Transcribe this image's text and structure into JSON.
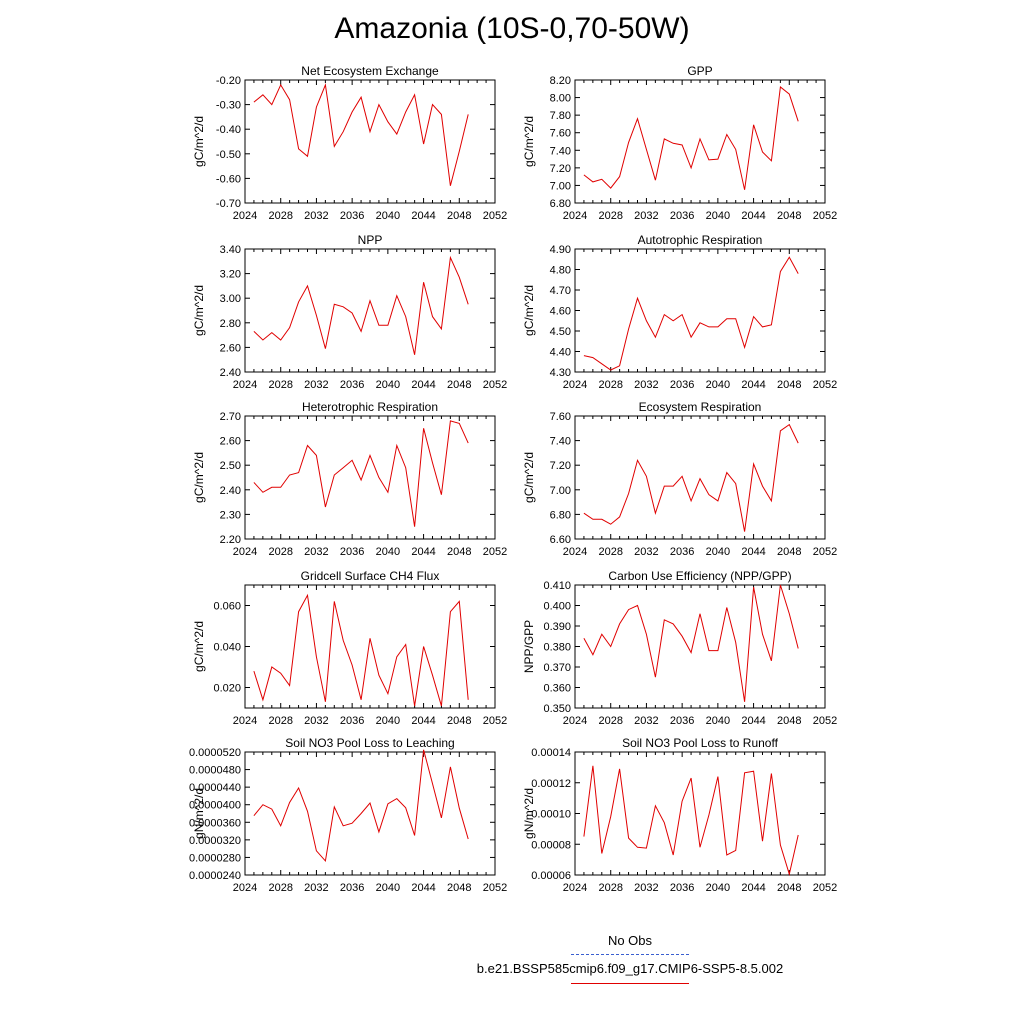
{
  "title": "Amazonia (10S-0,70-50W)",
  "legend": {
    "obs_label": "No Obs",
    "obs_color": "#3a5fd0",
    "run_label": "b.e21.BSSP585cmip6.f09_g17.CMIP6-SSP5-8.5.002",
    "run_color": "#e00000"
  },
  "chart_data": [
    {
      "type": "line",
      "title": "Net Ecosystem Exchange",
      "ylabel": "gC/m^2/d",
      "xlim": [
        2024,
        2052
      ],
      "xticks": [
        "2024",
        "2028",
        "2032",
        "2036",
        "2040",
        "2044",
        "2048",
        "2052"
      ],
      "ylim": [
        -0.7,
        -0.2
      ],
      "yticks": [
        "-0.70",
        "-0.60",
        "-0.50",
        "-0.40",
        "-0.30",
        "-0.20"
      ],
      "yticks_values": [
        -0.7,
        -0.6,
        -0.5,
        -0.4,
        -0.3,
        -0.2
      ],
      "x": [
        2025,
        2026,
        2027,
        2028,
        2029,
        2030,
        2031,
        2032,
        2033,
        2034,
        2035,
        2036,
        2037,
        2038,
        2039,
        2040,
        2041,
        2042,
        2043,
        2044,
        2045,
        2046,
        2047,
        2048,
        2049
      ],
      "series": [
        {
          "color": "#e00000",
          "values": [
            -0.29,
            -0.26,
            -0.3,
            -0.22,
            -0.28,
            -0.48,
            -0.51,
            -0.31,
            -0.22,
            -0.47,
            -0.41,
            -0.33,
            -0.27,
            -0.41,
            -0.3,
            -0.37,
            -0.42,
            -0.33,
            -0.26,
            -0.46,
            -0.3,
            -0.34,
            -0.63,
            -0.49,
            -0.34
          ]
        }
      ]
    },
    {
      "type": "line",
      "title": "GPP",
      "ylabel": "gC/m^2/d",
      "xlim": [
        2024,
        2052
      ],
      "xticks": [
        "2024",
        "2028",
        "2032",
        "2036",
        "2040",
        "2044",
        "2048",
        "2052"
      ],
      "ylim": [
        6.8,
        8.2
      ],
      "yticks": [
        "6.80",
        "7.00",
        "7.20",
        "7.40",
        "7.60",
        "7.80",
        "8.00",
        "8.20"
      ],
      "yticks_values": [
        6.8,
        7.0,
        7.2,
        7.4,
        7.6,
        7.8,
        8.0,
        8.2
      ],
      "x": [
        2025,
        2026,
        2027,
        2028,
        2029,
        2030,
        2031,
        2032,
        2033,
        2034,
        2035,
        2036,
        2037,
        2038,
        2039,
        2040,
        2041,
        2042,
        2043,
        2044,
        2045,
        2046,
        2047,
        2048,
        2049
      ],
      "series": [
        {
          "color": "#e00000",
          "values": [
            7.12,
            7.04,
            7.07,
            6.97,
            7.1,
            7.49,
            7.76,
            7.41,
            7.06,
            7.53,
            7.48,
            7.46,
            7.2,
            7.53,
            7.29,
            7.3,
            7.58,
            7.41,
            6.95,
            7.69,
            7.38,
            7.28,
            8.12,
            8.04,
            7.73
          ]
        }
      ]
    },
    {
      "type": "line",
      "title": "NPP",
      "ylabel": "gC/m^2/d",
      "xlim": [
        2024,
        2052
      ],
      "xticks": [
        "2024",
        "2028",
        "2032",
        "2036",
        "2040",
        "2044",
        "2048",
        "2052"
      ],
      "ylim": [
        2.4,
        3.4
      ],
      "yticks": [
        "2.40",
        "2.60",
        "2.80",
        "3.00",
        "3.20",
        "3.40"
      ],
      "yticks_values": [
        2.4,
        2.6,
        2.8,
        3.0,
        3.2,
        3.4
      ],
      "x": [
        2025,
        2026,
        2027,
        2028,
        2029,
        2030,
        2031,
        2032,
        2033,
        2034,
        2035,
        2036,
        2037,
        2038,
        2039,
        2040,
        2041,
        2042,
        2043,
        2044,
        2045,
        2046,
        2047,
        2048,
        2049
      ],
      "series": [
        {
          "color": "#e00000",
          "values": [
            2.73,
            2.66,
            2.72,
            2.66,
            2.76,
            2.97,
            3.1,
            2.86,
            2.59,
            2.95,
            2.93,
            2.88,
            2.73,
            2.98,
            2.78,
            2.78,
            3.02,
            2.85,
            2.54,
            3.13,
            2.85,
            2.75,
            3.33,
            3.17,
            2.95
          ]
        }
      ]
    },
    {
      "type": "line",
      "title": "Autotrophic Respiration",
      "ylabel": "gC/m^2/d",
      "xlim": [
        2024,
        2052
      ],
      "xticks": [
        "2024",
        "2028",
        "2032",
        "2036",
        "2040",
        "2044",
        "2048",
        "2052"
      ],
      "ylim": [
        4.3,
        4.9
      ],
      "yticks": [
        "4.30",
        "4.40",
        "4.50",
        "4.60",
        "4.70",
        "4.80",
        "4.90"
      ],
      "yticks_values": [
        4.3,
        4.4,
        4.5,
        4.6,
        4.7,
        4.8,
        4.9
      ],
      "x": [
        2025,
        2026,
        2027,
        2028,
        2029,
        2030,
        2031,
        2032,
        2033,
        2034,
        2035,
        2036,
        2037,
        2038,
        2039,
        2040,
        2041,
        2042,
        2043,
        2044,
        2045,
        2046,
        2047,
        2048,
        2049
      ],
      "series": [
        {
          "color": "#e00000",
          "values": [
            4.38,
            4.37,
            4.34,
            4.31,
            4.33,
            4.51,
            4.66,
            4.55,
            4.47,
            4.58,
            4.55,
            4.58,
            4.47,
            4.54,
            4.52,
            4.52,
            4.56,
            4.56,
            4.42,
            4.57,
            4.52,
            4.53,
            4.79,
            4.86,
            4.78
          ]
        }
      ]
    },
    {
      "type": "line",
      "title": "Heterotrophic Respiration",
      "ylabel": "gC/m^2/d",
      "xlim": [
        2024,
        2052
      ],
      "xticks": [
        "2024",
        "2028",
        "2032",
        "2036",
        "2040",
        "2044",
        "2048",
        "2052"
      ],
      "ylim": [
        2.2,
        2.7
      ],
      "yticks": [
        "2.20",
        "2.30",
        "2.40",
        "2.50",
        "2.60",
        "2.70"
      ],
      "yticks_values": [
        2.2,
        2.3,
        2.4,
        2.5,
        2.6,
        2.7
      ],
      "x": [
        2025,
        2026,
        2027,
        2028,
        2029,
        2030,
        2031,
        2032,
        2033,
        2034,
        2035,
        2036,
        2037,
        2038,
        2039,
        2040,
        2041,
        2042,
        2043,
        2044,
        2045,
        2046,
        2047,
        2048,
        2049
      ],
      "series": [
        {
          "color": "#e00000",
          "values": [
            2.43,
            2.39,
            2.41,
            2.41,
            2.46,
            2.47,
            2.58,
            2.54,
            2.33,
            2.46,
            2.49,
            2.52,
            2.44,
            2.54,
            2.45,
            2.39,
            2.58,
            2.49,
            2.25,
            2.65,
            2.51,
            2.38,
            2.68,
            2.67,
            2.59
          ]
        }
      ]
    },
    {
      "type": "line",
      "title": "Ecosystem Respiration",
      "ylabel": "gC/m^2/d",
      "xlim": [
        2024,
        2052
      ],
      "xticks": [
        "2024",
        "2028",
        "2032",
        "2036",
        "2040",
        "2044",
        "2048",
        "2052"
      ],
      "ylim": [
        6.6,
        7.6
      ],
      "yticks": [
        "6.60",
        "6.80",
        "7.00",
        "7.20",
        "7.40",
        "7.60"
      ],
      "yticks_values": [
        6.6,
        6.8,
        7.0,
        7.2,
        7.4,
        7.6
      ],
      "x": [
        2025,
        2026,
        2027,
        2028,
        2029,
        2030,
        2031,
        2032,
        2033,
        2034,
        2035,
        2036,
        2037,
        2038,
        2039,
        2040,
        2041,
        2042,
        2043,
        2044,
        2045,
        2046,
        2047,
        2048,
        2049
      ],
      "series": [
        {
          "color": "#e00000",
          "values": [
            6.81,
            6.76,
            6.76,
            6.72,
            6.78,
            6.97,
            7.24,
            7.11,
            6.81,
            7.03,
            7.03,
            7.11,
            6.91,
            7.09,
            6.96,
            6.91,
            7.14,
            7.05,
            6.66,
            7.21,
            7.03,
            6.91,
            7.48,
            7.53,
            7.38
          ]
        }
      ]
    },
    {
      "type": "line",
      "title": "Gridcell Surface CH4 Flux",
      "ylabel": "gC/m^2/d",
      "xlim": [
        2024,
        2052
      ],
      "xticks": [
        "2024",
        "2028",
        "2032",
        "2036",
        "2040",
        "2044",
        "2048",
        "2052"
      ],
      "ylim": [
        0.01,
        0.07
      ],
      "yticks": [
        "0.020",
        "0.040",
        "0.060"
      ],
      "yticks_values": [
        0.02,
        0.04,
        0.06
      ],
      "x": [
        2025,
        2026,
        2027,
        2028,
        2029,
        2030,
        2031,
        2032,
        2033,
        2034,
        2035,
        2036,
        2037,
        2038,
        2039,
        2040,
        2041,
        2042,
        2043,
        2044,
        2045,
        2046,
        2047,
        2048,
        2049
      ],
      "series": [
        {
          "color": "#e00000",
          "values": [
            0.028,
            0.014,
            0.03,
            0.027,
            0.021,
            0.057,
            0.065,
            0.035,
            0.013,
            0.062,
            0.043,
            0.031,
            0.014,
            0.044,
            0.026,
            0.017,
            0.035,
            0.041,
            0.011,
            0.04,
            0.026,
            0.011,
            0.057,
            0.062,
            0.014
          ]
        }
      ]
    },
    {
      "type": "line",
      "title": "Carbon Use Efficiency (NPP/GPP)",
      "ylabel": "NPP/GPP",
      "xlim": [
        2024,
        2052
      ],
      "xticks": [
        "2024",
        "2028",
        "2032",
        "2036",
        "2040",
        "2044",
        "2048",
        "2052"
      ],
      "ylim": [
        0.35,
        0.41
      ],
      "yticks": [
        "0.350",
        "0.360",
        "0.370",
        "0.380",
        "0.390",
        "0.400",
        "0.410"
      ],
      "yticks_values": [
        0.35,
        0.36,
        0.37,
        0.38,
        0.39,
        0.4,
        0.41
      ],
      "x": [
        2025,
        2026,
        2027,
        2028,
        2029,
        2030,
        2031,
        2032,
        2033,
        2034,
        2035,
        2036,
        2037,
        2038,
        2039,
        2040,
        2041,
        2042,
        2043,
        2044,
        2045,
        2046,
        2047,
        2048,
        2049
      ],
      "series": [
        {
          "color": "#e00000",
          "values": [
            0.384,
            0.376,
            0.386,
            0.38,
            0.391,
            0.398,
            0.4,
            0.386,
            0.365,
            0.393,
            0.391,
            0.385,
            0.377,
            0.396,
            0.378,
            0.378,
            0.399,
            0.382,
            0.353,
            0.409,
            0.386,
            0.373,
            0.41,
            0.396,
            0.379
          ]
        }
      ]
    },
    {
      "type": "line",
      "title": "Soil NO3 Pool Loss to Leaching",
      "ylabel": "gN/m^2/d",
      "xlim": [
        2024,
        2052
      ],
      "xticks": [
        "2024",
        "2028",
        "2032",
        "2036",
        "2040",
        "2044",
        "2048",
        "2052"
      ],
      "ylim": [
        2.4e-05,
        5.2e-05
      ],
      "yticks": [
        "0.0000240",
        "0.0000280",
        "0.0000320",
        "0.0000360",
        "0.0000400",
        "0.0000440",
        "0.0000480",
        "0.0000520"
      ],
      "yticks_values": [
        2.4e-05,
        2.8e-05,
        3.2e-05,
        3.6e-05,
        4e-05,
        4.4e-05,
        4.8e-05,
        5.2e-05
      ],
      "x": [
        2025,
        2026,
        2027,
        2028,
        2029,
        2030,
        2031,
        2032,
        2033,
        2034,
        2035,
        2036,
        2037,
        2038,
        2039,
        2040,
        2041,
        2042,
        2043,
        2044,
        2045,
        2046,
        2047,
        2048,
        2049
      ],
      "series": [
        {
          "color": "#e00000",
          "values": [
            3.75e-05,
            4e-05,
            3.9e-05,
            3.52e-05,
            4.05e-05,
            4.38e-05,
            3.85e-05,
            2.95e-05,
            2.72e-05,
            3.95e-05,
            3.52e-05,
            3.58e-05,
            3.8e-05,
            4.04e-05,
            3.38e-05,
            4.02e-05,
            4.14e-05,
            3.93e-05,
            3.3e-05,
            5.25e-05,
            4.48e-05,
            3.7e-05,
            4.86e-05,
            3.92e-05,
            3.22e-05
          ]
        }
      ]
    },
    {
      "type": "line",
      "title": "Soil NO3 Pool Loss to Runoff",
      "ylabel": "gN/m^2/d",
      "xlim": [
        2024,
        2052
      ],
      "xticks": [
        "2024",
        "2028",
        "2032",
        "2036",
        "2040",
        "2044",
        "2048",
        "2052"
      ],
      "ylim": [
        6e-05,
        0.00014
      ],
      "yticks": [
        "0.00006",
        "0.00008",
        "0.00010",
        "0.00012",
        "0.00014"
      ],
      "yticks_values": [
        6e-05,
        8e-05,
        0.0001,
        0.00012,
        0.00014
      ],
      "x": [
        2025,
        2026,
        2027,
        2028,
        2029,
        2030,
        2031,
        2032,
        2033,
        2034,
        2035,
        2036,
        2037,
        2038,
        2039,
        2040,
        2041,
        2042,
        2043,
        2044,
        2045,
        2046,
        2047,
        2048,
        2049
      ],
      "series": [
        {
          "color": "#e00000",
          "values": [
            8.5e-05,
            0.000131,
            7.4e-05,
            9.8e-05,
            0.000129,
            8.4e-05,
            7.8e-05,
            7.75e-05,
            0.000105,
            9.4e-05,
            7.3e-05,
            0.000108,
            0.000123,
            7.8e-05,
            9.9e-05,
            0.000124,
            7.3e-05,
            7.6e-05,
            0.0001265,
            0.0001275,
            8.2e-05,
            0.000126,
            7.95e-05,
            6.05e-05,
            8.6e-05
          ]
        }
      ]
    }
  ]
}
